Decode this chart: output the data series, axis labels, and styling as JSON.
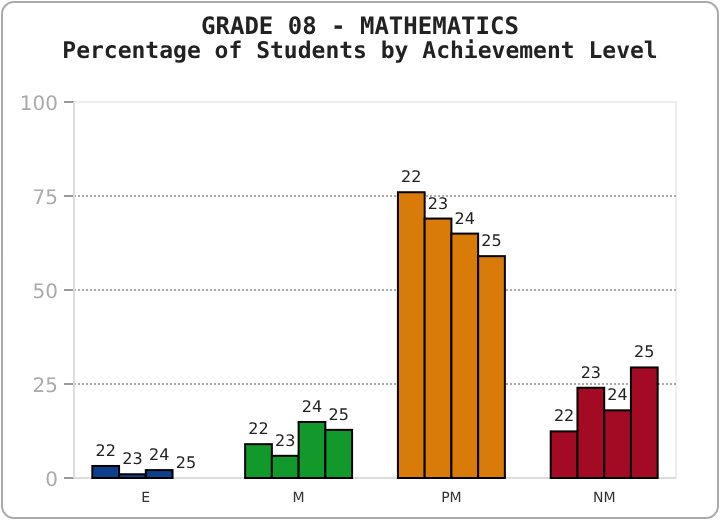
{
  "chart_data": {
    "type": "bar",
    "title": "GRADE 08 - MATHEMATICS",
    "subtitle": "Percentage of Students by Achievement Level",
    "categories": [
      "E",
      "M",
      "PM",
      "NM"
    ],
    "series": [
      {
        "name": "22",
        "colors": [
          "#0d3f8c",
          "#119a2b",
          "#d87b08",
          "#a30b24"
        ],
        "values": [
          3.2,
          9,
          76,
          12.4
        ]
      },
      {
        "name": "23",
        "colors": [
          "#0d3f8c",
          "#119a2b",
          "#d87b08",
          "#a30b24"
        ],
        "values": [
          1,
          5.9,
          69,
          24
        ]
      },
      {
        "name": "24",
        "colors": [
          "#0d3f8c",
          "#119a2b",
          "#d87b08",
          "#a30b24"
        ],
        "values": [
          2.1,
          14.9,
          65,
          18
        ]
      },
      {
        "name": "25",
        "colors": [
          "#0d3f8c",
          "#119a2b",
          "#d87b08",
          "#a30b24"
        ],
        "values": [
          0,
          12.8,
          59,
          29.4
        ]
      }
    ],
    "ylim": [
      0,
      100
    ],
    "yticks": [
      0,
      25,
      50,
      75,
      100
    ],
    "grid": "y"
  }
}
